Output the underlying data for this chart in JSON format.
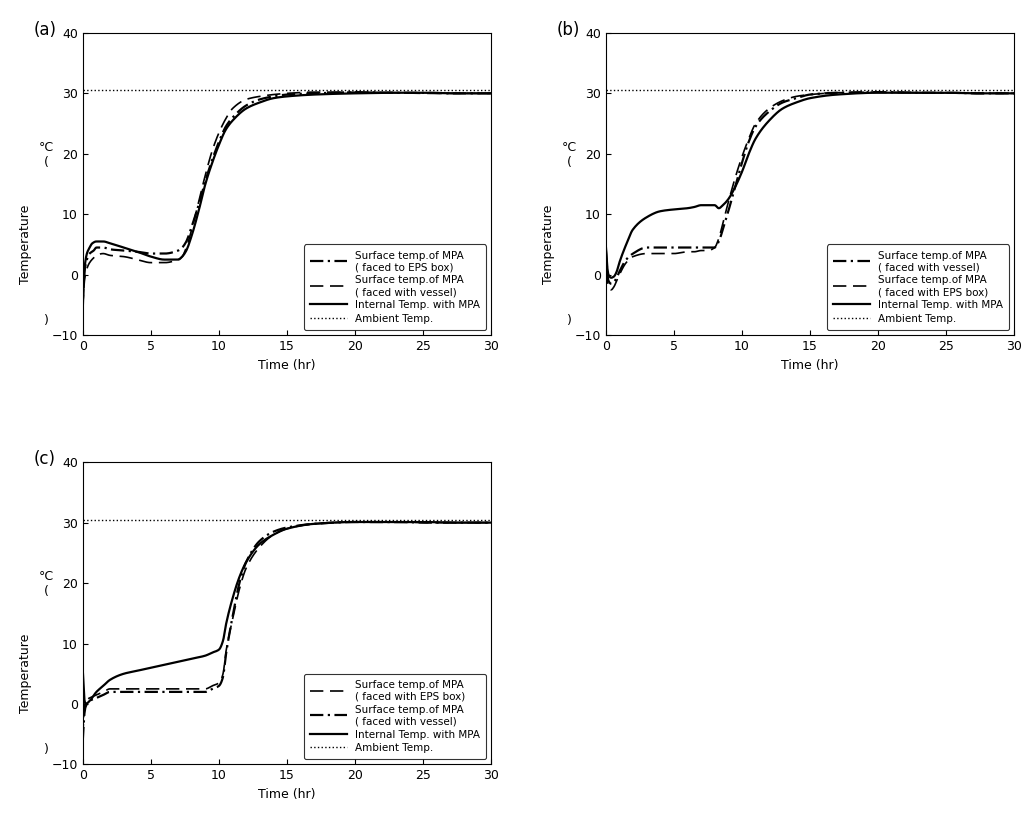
{
  "title_a": "(a)",
  "title_b": "(b)",
  "title_c": "(c)",
  "xlabel": "Time (hr)",
  "ylim": [
    -10,
    40
  ],
  "xlim": [
    0,
    30
  ],
  "yticks": [
    -10,
    0,
    10,
    20,
    30,
    40
  ],
  "xticks": [
    0,
    5,
    10,
    15,
    20,
    25,
    30
  ],
  "ambient_temp": 30.5,
  "panel_a": {
    "legend": [
      "Surface temp.of MPA\n( faced to EPS box)",
      "Surface temp.of MPA\n( faced with vessel)",
      "Internal Temp. with MPA",
      "Ambient Temp."
    ],
    "internal_x": [
      0,
      0.05,
      0.15,
      0.3,
      0.5,
      0.7,
      1.0,
      1.5,
      2.0,
      3.0,
      4.0,
      5.0,
      6.0,
      7.0,
      7.3,
      7.6,
      8.0,
      8.5,
      9.0,
      9.5,
      10.0,
      10.5,
      11.0,
      12.0,
      13.0,
      14.0,
      15.0,
      17.0,
      20.0,
      23.0,
      25.0,
      27.0,
      30.0
    ],
    "internal_y": [
      -5.5,
      -2.0,
      1.5,
      3.5,
      4.5,
      5.2,
      5.5,
      5.5,
      5.2,
      4.5,
      3.8,
      3.0,
      2.5,
      2.5,
      3.0,
      4.0,
      6.5,
      10.5,
      15.0,
      18.5,
      21.5,
      24.0,
      25.5,
      27.5,
      28.5,
      29.2,
      29.5,
      29.8,
      30.0,
      30.1,
      30.1,
      30.0,
      30.0
    ],
    "surf_eps_x": [
      0,
      0.05,
      0.15,
      0.3,
      0.5,
      0.8,
      1.0,
      1.5,
      2.0,
      3.0,
      4.0,
      5.0,
      6.0,
      7.0,
      7.3,
      7.6,
      8.0,
      8.5,
      9.0,
      9.5,
      10.0,
      10.5,
      11.0,
      12.0,
      13.0,
      14.0,
      15.0,
      17.0,
      20.0,
      23.0,
      25.0,
      27.0,
      30.0
    ],
    "surf_eps_y": [
      -4.5,
      -1.5,
      1.0,
      2.5,
      3.5,
      4.0,
      4.5,
      4.5,
      4.2,
      4.0,
      3.8,
      3.5,
      3.5,
      4.0,
      4.5,
      5.5,
      8.0,
      11.5,
      15.5,
      19.0,
      22.0,
      24.5,
      26.0,
      28.0,
      29.0,
      29.5,
      29.8,
      30.0,
      30.2,
      30.1,
      30.1,
      30.0,
      30.0
    ],
    "surf_vessel_x": [
      0,
      0.05,
      0.15,
      0.3,
      0.5,
      0.8,
      1.0,
      1.5,
      2.0,
      3.0,
      4.0,
      5.0,
      6.0,
      7.0,
      7.3,
      7.6,
      8.0,
      8.5,
      9.0,
      9.5,
      10.0,
      10.5,
      11.0,
      12.0,
      13.0,
      14.0,
      15.0,
      17.0,
      20.0,
      23.0,
      25.0,
      27.0,
      30.0
    ],
    "surf_vessel_y": [
      -5.5,
      -3.0,
      -0.5,
      1.0,
      2.0,
      2.8,
      3.2,
      3.5,
      3.2,
      3.0,
      2.5,
      2.0,
      2.0,
      2.5,
      3.0,
      4.5,
      7.5,
      12.0,
      16.5,
      20.5,
      23.5,
      25.8,
      27.5,
      29.0,
      29.5,
      29.8,
      30.0,
      30.2,
      30.2,
      30.1,
      30.0,
      30.0,
      30.0
    ]
  },
  "panel_b": {
    "legend": [
      "Surface temp.of MPA\n( faced with vessel)",
      "Surface temp.of MPA\n( faced with EPS box)",
      "Internal Temp. with MPA",
      "Ambient Temp."
    ],
    "internal_x": [
      0,
      0.05,
      0.1,
      0.2,
      0.4,
      0.6,
      0.8,
      1.0,
      1.5,
      2.0,
      3.0,
      4.0,
      5.0,
      6.0,
      6.5,
      7.0,
      7.5,
      8.0,
      8.3,
      8.6,
      9.0,
      9.5,
      10.0,
      10.5,
      11.0,
      12.0,
      13.0,
      14.0,
      15.0,
      17.0,
      20.0,
      23.0,
      25.0,
      27.0,
      30.0
    ],
    "internal_y": [
      5.0,
      3.5,
      1.5,
      0.0,
      -0.5,
      -0.3,
      0.5,
      2.0,
      5.0,
      7.5,
      9.5,
      10.5,
      10.8,
      11.0,
      11.2,
      11.5,
      11.5,
      11.5,
      11.0,
      11.5,
      12.5,
      14.5,
      17.0,
      20.0,
      22.5,
      25.5,
      27.5,
      28.5,
      29.2,
      29.8,
      30.1,
      30.1,
      30.1,
      30.0,
      30.0
    ],
    "surf_vessel_x": [
      0,
      0.05,
      0.1,
      0.2,
      0.4,
      0.6,
      0.8,
      1.0,
      1.5,
      2.0,
      3.0,
      4.0,
      5.0,
      6.0,
      6.5,
      7.0,
      7.5,
      8.0,
      8.3,
      8.6,
      9.0,
      9.5,
      10.0,
      10.5,
      11.0,
      12.0,
      13.0,
      14.0,
      15.0,
      17.0,
      20.0,
      23.0,
      25.0,
      27.0,
      30.0
    ],
    "surf_vessel_y": [
      4.5,
      3.0,
      0.5,
      -1.0,
      -1.5,
      -1.2,
      -0.5,
      0.5,
      2.5,
      3.5,
      4.5,
      4.5,
      4.5,
      4.5,
      4.5,
      4.5,
      4.5,
      4.5,
      5.5,
      7.5,
      10.5,
      14.5,
      18.5,
      22.0,
      24.5,
      27.0,
      28.5,
      29.2,
      29.8,
      30.1,
      30.2,
      30.1,
      30.1,
      30.0,
      30.0
    ],
    "surf_eps_x": [
      0,
      0.05,
      0.1,
      0.2,
      0.4,
      0.6,
      0.8,
      1.0,
      1.5,
      2.0,
      3.0,
      4.0,
      5.0,
      6.0,
      6.5,
      7.0,
      7.5,
      8.0,
      8.3,
      8.6,
      9.0,
      9.5,
      10.0,
      10.5,
      11.0,
      12.0,
      13.0,
      14.0,
      15.0,
      17.0,
      20.0,
      23.0,
      25.0,
      27.0,
      30.0
    ],
    "surf_eps_y": [
      4.0,
      2.5,
      -0.5,
      -2.0,
      -2.5,
      -2.0,
      -1.0,
      0.0,
      2.0,
      3.0,
      3.5,
      3.5,
      3.5,
      3.8,
      3.8,
      4.0,
      4.0,
      4.5,
      6.0,
      8.5,
      12.0,
      16.0,
      19.5,
      22.5,
      25.0,
      27.5,
      28.8,
      29.5,
      29.8,
      30.1,
      30.2,
      30.1,
      30.1,
      30.0,
      30.0
    ]
  },
  "panel_c": {
    "legend": [
      "Surface temp.of MPA\n( faced with EPS box)",
      "Surface temp.of MPA\n( faced with vessel)",
      "Internal Temp. with MPA",
      "Ambient Temp."
    ],
    "internal_x": [
      0,
      0.05,
      0.1,
      0.2,
      0.5,
      1.0,
      1.5,
      2.0,
      3.0,
      4.0,
      5.0,
      6.0,
      7.0,
      8.0,
      9.0,
      9.5,
      10.0,
      10.3,
      10.5,
      11.0,
      11.5,
      12.0,
      13.0,
      14.0,
      15.0,
      17.0,
      20.0,
      23.0,
      25.0,
      27.0,
      30.0
    ],
    "internal_y": [
      5.5,
      3.5,
      1.0,
      0.0,
      0.5,
      2.0,
      3.0,
      4.0,
      5.0,
      5.5,
      6.0,
      6.5,
      7.0,
      7.5,
      8.0,
      8.5,
      9.0,
      10.5,
      13.0,
      17.5,
      21.0,
      23.5,
      26.5,
      28.0,
      29.0,
      29.8,
      30.1,
      30.1,
      30.1,
      30.0,
      30.0
    ],
    "surf_eps_x": [
      0,
      0.05,
      0.1,
      0.2,
      0.5,
      1.0,
      1.5,
      2.0,
      3.0,
      4.0,
      5.0,
      6.0,
      7.0,
      8.0,
      9.0,
      9.5,
      10.0,
      10.3,
      10.5,
      11.0,
      11.5,
      12.0,
      13.0,
      14.0,
      15.0,
      17.0,
      20.0,
      23.0,
      25.0,
      27.0,
      30.0
    ],
    "surf_eps_y": [
      -5.5,
      -3.0,
      -0.5,
      0.5,
      1.0,
      1.5,
      2.0,
      2.5,
      2.5,
      2.5,
      2.5,
      2.5,
      2.5,
      2.5,
      2.5,
      3.0,
      3.5,
      5.0,
      8.5,
      14.0,
      19.0,
      22.5,
      26.0,
      28.0,
      29.0,
      29.8,
      30.1,
      30.1,
      30.0,
      30.0,
      30.0
    ],
    "surf_vessel_x": [
      0,
      0.05,
      0.1,
      0.2,
      0.5,
      1.0,
      1.5,
      2.0,
      3.0,
      4.0,
      5.0,
      6.0,
      7.0,
      8.0,
      9.0,
      9.5,
      10.0,
      10.3,
      10.5,
      11.0,
      11.5,
      12.0,
      13.0,
      14.0,
      15.0,
      17.0,
      20.0,
      23.0,
      25.0,
      27.0,
      30.0
    ],
    "surf_vessel_y": [
      -6.0,
      -4.0,
      -2.0,
      -0.5,
      0.5,
      1.0,
      1.5,
      2.0,
      2.0,
      2.0,
      2.0,
      2.0,
      2.0,
      2.0,
      2.0,
      2.5,
      3.0,
      4.5,
      8.0,
      14.5,
      20.0,
      23.5,
      27.0,
      28.5,
      29.2,
      29.8,
      30.1,
      30.1,
      30.0,
      30.0,
      30.0
    ]
  }
}
